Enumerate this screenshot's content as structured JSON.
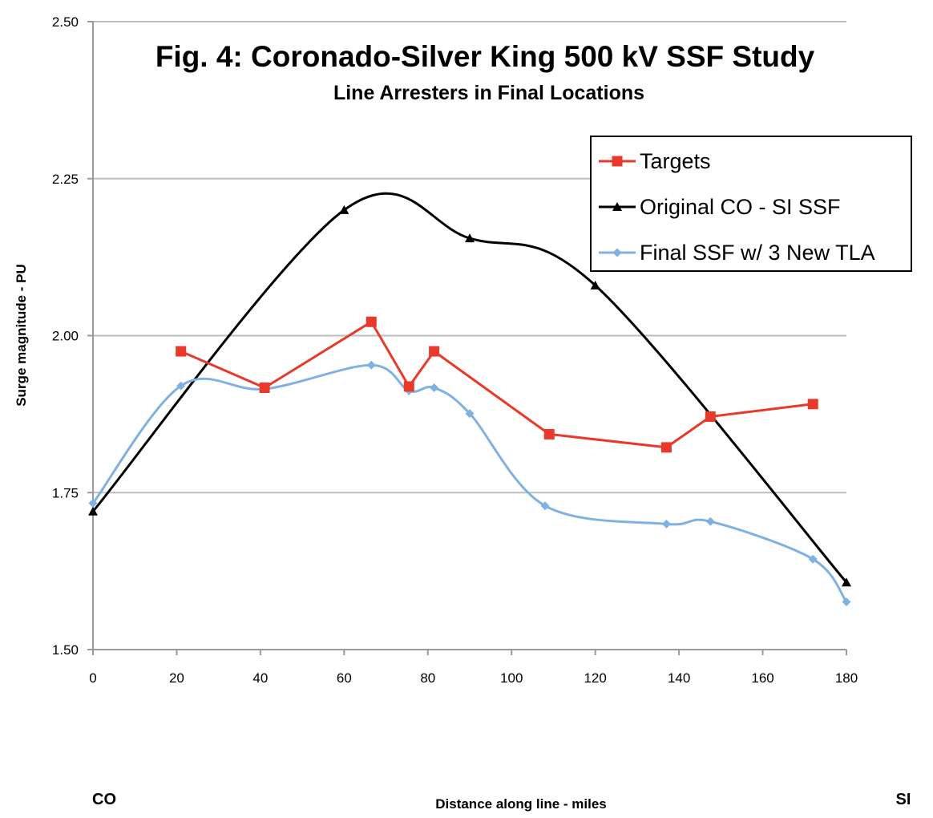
{
  "chart_data": {
    "type": "line",
    "title": "Fig. 4: Coronado-Silver King 500 kV SSF Study",
    "subtitle": "Line Arresters in Final Locations",
    "xlabel": "Distance along line - miles",
    "ylabel": "Surge magnitude - PU",
    "x_start_label": "CO",
    "x_end_label": "SI",
    "xlim": [
      0,
      180
    ],
    "ylim": [
      1.5,
      2.5
    ],
    "x_ticks": [
      0,
      20,
      40,
      60,
      80,
      100,
      120,
      140,
      160,
      180
    ],
    "y_ticks": [
      1.5,
      1.75,
      2.0,
      2.25,
      2.5
    ],
    "x_tick_labels": [
      "0",
      "20",
      "40",
      "60",
      "80",
      "100",
      "120",
      "140",
      "160",
      "180"
    ],
    "y_tick_labels": [
      "1.50",
      "1.75",
      "2.00",
      "2.25",
      "2.50"
    ],
    "grid": "horizontal",
    "legend_position": "top-right",
    "series": [
      {
        "name": "Targets",
        "color": "#e8392a",
        "marker": "square",
        "smooth": false,
        "x": [
          21,
          41,
          66.5,
          75.5,
          81.5,
          109,
          137,
          147.5,
          172
        ],
        "y": [
          1.975,
          1.917,
          2.022,
          1.919,
          1.975,
          1.843,
          1.822,
          1.871,
          1.891
        ]
      },
      {
        "name": "Original CO - SI SSF",
        "color": "#000000",
        "marker": "triangle",
        "smooth": true,
        "x": [
          0,
          60,
          90,
          120,
          180
        ],
        "y": [
          1.72,
          2.2,
          2.155,
          2.08,
          1.607
        ]
      },
      {
        "name": "Final SSF w/ 3 New TLA",
        "color": "#7fb2e2",
        "marker": "diamond",
        "smooth": true,
        "x": [
          0,
          21,
          41,
          66.5,
          75.5,
          81.5,
          90,
          108,
          137,
          147.5,
          172,
          180
        ],
        "y": [
          1.733,
          1.92,
          1.915,
          1.953,
          1.912,
          1.917,
          1.876,
          1.729,
          1.7,
          1.704,
          1.644,
          1.576
        ]
      }
    ]
  }
}
